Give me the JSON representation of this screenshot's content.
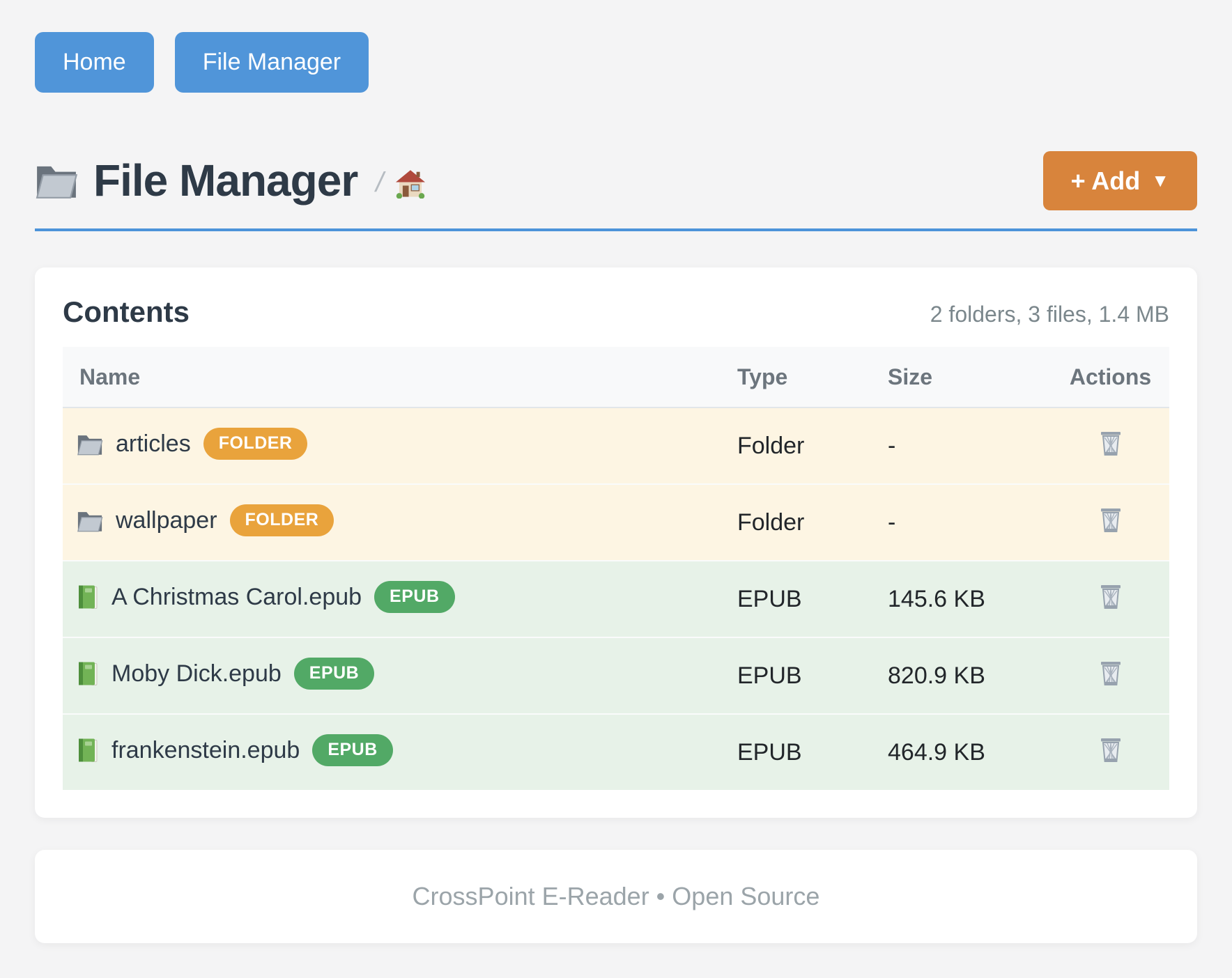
{
  "colors": {
    "page_bg": "#f4f4f5",
    "primary_blue": "#5095d9",
    "divider_blue": "#4c93d9",
    "accent_orange": "#d8843c",
    "badge_orange": "#e9a33c",
    "badge_green": "#52a966",
    "row_folder_bg": "#fdf5e3",
    "row_epub_bg": "#e7f2e8",
    "heading_navy": "#2e3a47",
    "table_head_bg": "#f8f9fa",
    "table_head_text": "#6c757d",
    "muted_text": "#7b878c",
    "footer_text": "#9ba4a9"
  },
  "nav": {
    "home_label": "Home",
    "file_manager_label": "File Manager"
  },
  "header": {
    "title": "File Manager",
    "breadcrumb_separator": "/",
    "add_button_label": "+ Add",
    "add_button_caret": "▼"
  },
  "contents": {
    "heading": "Contents",
    "summary": "2 folders, 3 files, 1.4 MB",
    "table": {
      "columns": [
        "Name",
        "Type",
        "Size",
        "Actions"
      ],
      "rows": [
        {
          "name": "articles",
          "badge": "FOLDER",
          "type": "Folder",
          "size": "-",
          "kind": "folder"
        },
        {
          "name": "wallpaper",
          "badge": "FOLDER",
          "type": "Folder",
          "size": "-",
          "kind": "folder"
        },
        {
          "name": "A Christmas Carol.epub",
          "badge": "EPUB",
          "type": "EPUB",
          "size": "145.6 KB",
          "kind": "epub"
        },
        {
          "name": "Moby Dick.epub",
          "badge": "EPUB",
          "type": "EPUB",
          "size": "820.9 KB",
          "kind": "epub"
        },
        {
          "name": "frankenstein.epub",
          "badge": "EPUB",
          "type": "EPUB",
          "size": "464.9 KB",
          "kind": "epub"
        }
      ]
    }
  },
  "footer": {
    "text": "CrossPoint E-Reader • Open Source"
  },
  "icons": {
    "folder-icon": "📁",
    "home-icon": "🏠",
    "green-book-icon": "📗",
    "trash-icon": "🗑",
    "caret-down-icon": "▼"
  }
}
